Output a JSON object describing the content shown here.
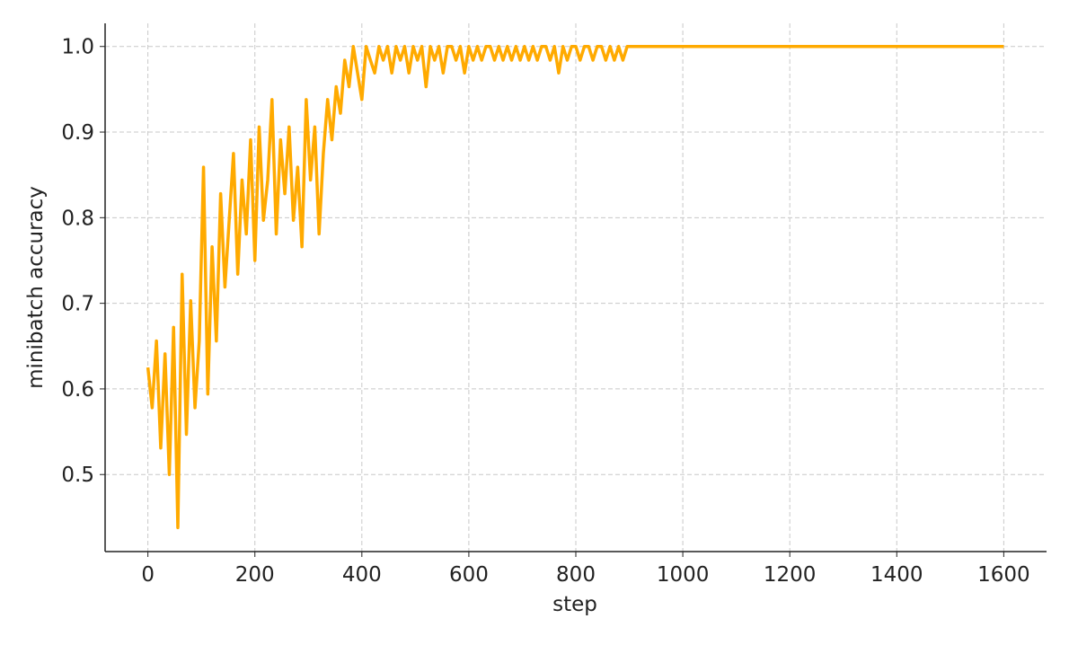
{
  "chart_data": {
    "type": "line",
    "xlabel": "step",
    "ylabel": "minibatch accuracy",
    "x": [
      0,
      8,
      16,
      24,
      32,
      40,
      48,
      56,
      64,
      72,
      80,
      88,
      96,
      104,
      112,
      120,
      128,
      136,
      144,
      152,
      160,
      168,
      176,
      184,
      192,
      200,
      208,
      216,
      224,
      232,
      240,
      248,
      256,
      264,
      272,
      280,
      288,
      296,
      304,
      312,
      320,
      328,
      336,
      344,
      352,
      360,
      368,
      376,
      384,
      392,
      400,
      408,
      416,
      424,
      432,
      440,
      448,
      456,
      464,
      472,
      480,
      488,
      496,
      504,
      512,
      520,
      528,
      536,
      544,
      552,
      560,
      568,
      576,
      584,
      592,
      600,
      608,
      616,
      624,
      632,
      640,
      648,
      656,
      664,
      672,
      680,
      688,
      696,
      704,
      712,
      720,
      728,
      736,
      744,
      752,
      760,
      768,
      776,
      784,
      792,
      800,
      808,
      816,
      824,
      832,
      840,
      848,
      856,
      864,
      872,
      880,
      888,
      896,
      1600
    ],
    "series": [
      {
        "color": "#ffaa00",
        "values": [
          0.625,
          0.578,
          0.656,
          0.531,
          0.641,
          0.5,
          0.672,
          0.438,
          0.734,
          0.547,
          0.703,
          0.578,
          0.656,
          0.859,
          0.594,
          0.766,
          0.656,
          0.828,
          0.719,
          0.797,
          0.875,
          0.734,
          0.844,
          0.781,
          0.891,
          0.75,
          0.906,
          0.797,
          0.844,
          0.938,
          0.781,
          0.891,
          0.828,
          0.906,
          0.797,
          0.859,
          0.766,
          0.938,
          0.844,
          0.906,
          0.781,
          0.875,
          0.938,
          0.891,
          0.953,
          0.922,
          0.984,
          0.953,
          1.0,
          0.969,
          0.938,
          1.0,
          0.984,
          0.969,
          1.0,
          0.984,
          1.0,
          0.969,
          1.0,
          0.984,
          1.0,
          0.969,
          1.0,
          0.984,
          1.0,
          0.953,
          1.0,
          0.984,
          1.0,
          0.969,
          1.0,
          1.0,
          0.984,
          1.0,
          0.969,
          1.0,
          0.984,
          1.0,
          0.984,
          1.0,
          1.0,
          0.984,
          1.0,
          0.984,
          1.0,
          0.984,
          1.0,
          0.984,
          1.0,
          0.984,
          1.0,
          0.984,
          1.0,
          1.0,
          0.984,
          1.0,
          0.969,
          1.0,
          0.984,
          1.0,
          1.0,
          0.984,
          1.0,
          1.0,
          0.984,
          1.0,
          1.0,
          0.984,
          1.0,
          0.984,
          1.0,
          0.984,
          1.0,
          1.0
        ]
      }
    ],
    "xlim": [
      -80,
      1680
    ],
    "ylim": [
      0.41,
      1.027
    ],
    "xticks": [
      0,
      200,
      400,
      600,
      800,
      1000,
      1200,
      1400,
      1600
    ],
    "yticks": [
      0.5,
      0.6,
      0.7,
      0.8,
      0.9,
      {
        "value": 1,
        "label": "1.0"
      }
    ],
    "grid": true
  }
}
